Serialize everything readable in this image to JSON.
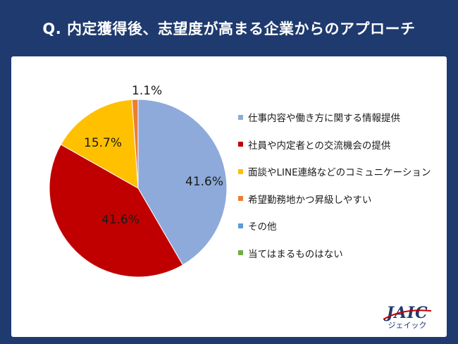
{
  "title": "Q. 内定獲得後、志望度が高まる企業からのアプローチ",
  "logo": {
    "main": "JAIC",
    "sub": "ジェイック"
  },
  "chart_data": {
    "type": "pie",
    "title": "Q. 内定獲得後、志望度が高まる企業からのアプローチ",
    "legend_position": "right",
    "slices": [
      {
        "label": "仕事内容や働き方に関する情報提供",
        "value": 41.6,
        "display": "41.6%",
        "color": "#8eaadb"
      },
      {
        "label": "社員や内定者との交流機会の提供",
        "value": 41.6,
        "display": "41.6%",
        "color": "#c00000"
      },
      {
        "label": "面談やLINE連絡などのコミュニケーション",
        "value": 15.7,
        "display": "15.7%",
        "color": "#ffc000"
      },
      {
        "label": "希望勤務地かつ昇級しやすい",
        "value": 1.1,
        "display": "1.1%",
        "color": "#ed7d31"
      },
      {
        "label": "その他",
        "value": 0,
        "display": "",
        "color": "#5b9bd5"
      },
      {
        "label": "当てはまるものはない",
        "value": 0,
        "display": "",
        "color": "#70ad47"
      }
    ]
  }
}
